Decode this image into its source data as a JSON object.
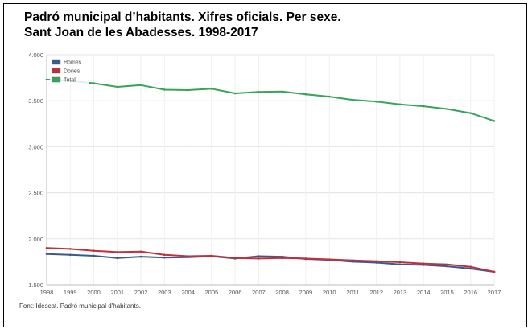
{
  "title_line1": "Padró municipal d’habitants. Xifres oficials. Per sexe.",
  "title_line2": "Sant Joan de les Abadesses. 1998-2017",
  "source": "Font: Idescat. Padró municipal d'habitants.",
  "chart_data": {
    "type": "line",
    "x": [
      "1998",
      "1999",
      "2000",
      "2001",
      "2002",
      "2003",
      "2004",
      "2005",
      "2006",
      "2007",
      "2008",
      "2009",
      "2010",
      "2011",
      "2012",
      "2013",
      "2014",
      "2015",
      "2016",
      "2017"
    ],
    "ylim": [
      1500,
      4000
    ],
    "yticks": [
      "1.500",
      "2.000",
      "2.500",
      "3.000",
      "3.500",
      "4.000"
    ],
    "ytick_values": [
      1500,
      2000,
      2500,
      3000,
      3500,
      4000
    ],
    "grid": true,
    "legend_position": "top-left",
    "series": [
      {
        "name": "Homes",
        "color": "#3a5a8c",
        "values": [
          1835,
          1825,
          1815,
          1790,
          1805,
          1795,
          1800,
          1810,
          1785,
          1810,
          1805,
          1780,
          1770,
          1750,
          1740,
          1720,
          1715,
          1700,
          1675,
          1640
        ]
      },
      {
        "name": "Dones",
        "color": "#c0303a",
        "values": [
          1900,
          1890,
          1870,
          1855,
          1860,
          1825,
          1810,
          1815,
          1790,
          1785,
          1790,
          1785,
          1775,
          1765,
          1755,
          1745,
          1730,
          1720,
          1695,
          1640
        ]
      },
      {
        "name": "Total",
        "color": "#3aa35a",
        "values": [
          3730,
          3715,
          3690,
          3650,
          3670,
          3620,
          3615,
          3630,
          3580,
          3595,
          3600,
          3570,
          3545,
          3510,
          3490,
          3460,
          3440,
          3410,
          3365,
          3280
        ]
      }
    ]
  }
}
